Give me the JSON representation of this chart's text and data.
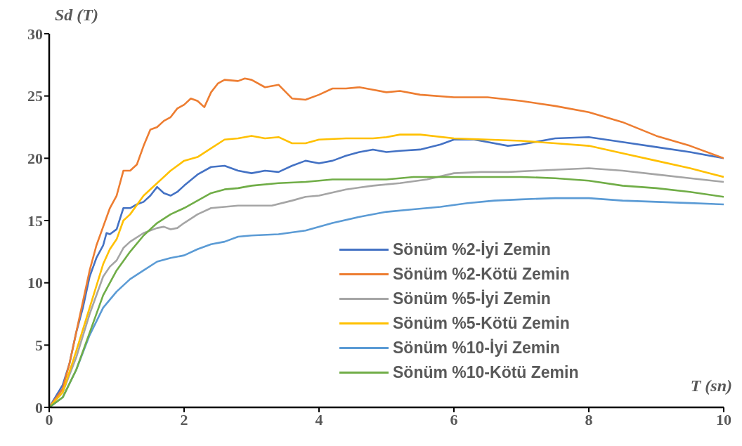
{
  "chart_data": {
    "type": "line",
    "xlabel": "T (sn)",
    "ylabel": "Sd (T)",
    "xlim": [
      0,
      10
    ],
    "xticks": [
      0,
      2,
      4,
      6,
      8,
      10
    ],
    "ylim": [
      0,
      30
    ],
    "yticks": [
      0,
      5,
      10,
      15,
      20,
      25,
      30
    ],
    "grid": false,
    "legend": "bottom right",
    "marker": "none",
    "line_style": "solid",
    "series": [
      {
        "name": "Sönüm %2-İyi Zemin",
        "color": "#4472c4",
        "x": [
          0,
          0.2,
          0.3,
          0.4,
          0.5,
          0.6,
          0.7,
          0.8,
          0.85,
          0.9,
          1.0,
          1.1,
          1.2,
          1.3,
          1.4,
          1.5,
          1.6,
          1.7,
          1.8,
          1.9,
          2.0,
          2.2,
          2.4,
          2.6,
          2.8,
          3.0,
          3.2,
          3.4,
          3.6,
          3.8,
          4.0,
          4.2,
          4.4,
          4.6,
          4.8,
          5.0,
          5.2,
          5.5,
          5.8,
          6.0,
          6.3,
          6.5,
          6.8,
          7.0,
          7.5,
          8.0,
          8.5,
          9.0,
          9.5,
          10
        ],
        "values": [
          0,
          1.8,
          3.5,
          6,
          8,
          10.5,
          12,
          13,
          14,
          13.9,
          14.3,
          16,
          16,
          16.3,
          16.5,
          17,
          17.7,
          17.2,
          17,
          17.3,
          17.8,
          18.7,
          19.3,
          19.4,
          19,
          18.8,
          19,
          18.9,
          19.4,
          19.8,
          19.6,
          19.8,
          20.2,
          20.5,
          20.7,
          20.5,
          20.6,
          20.7,
          21.1,
          21.5,
          21.5,
          21.3,
          21,
          21.1,
          21.6,
          21.7,
          21.3,
          20.9,
          20.5,
          20
        ]
      },
      {
        "name": "Sönüm %2-Kötü Zemin",
        "color": "#ed7d31",
        "x": [
          0,
          0.2,
          0.3,
          0.4,
          0.5,
          0.6,
          0.7,
          0.8,
          0.9,
          1.0,
          1.1,
          1.2,
          1.3,
          1.4,
          1.5,
          1.6,
          1.7,
          1.8,
          1.9,
          2.0,
          2.1,
          2.2,
          2.3,
          2.4,
          2.5,
          2.6,
          2.8,
          2.9,
          3.0,
          3.2,
          3.4,
          3.6,
          3.8,
          4.0,
          4.2,
          4.4,
          4.6,
          4.8,
          5.0,
          5.2,
          5.5,
          6.0,
          6.5,
          7.0,
          7.5,
          8.0,
          8.5,
          9.0,
          9.5,
          10
        ],
        "values": [
          0,
          1.5,
          3.5,
          6,
          8.5,
          11,
          13,
          14.5,
          16,
          17,
          19,
          19,
          19.5,
          21,
          22.3,
          22.5,
          23,
          23.3,
          24,
          24.3,
          24.8,
          24.6,
          24.1,
          25.3,
          26,
          26.3,
          26.2,
          26.4,
          26.3,
          25.7,
          25.9,
          24.8,
          24.7,
          25.1,
          25.6,
          25.6,
          25.7,
          25.5,
          25.3,
          25.4,
          25.1,
          24.9,
          24.9,
          24.6,
          24.2,
          23.7,
          22.9,
          21.8,
          21,
          20
        ]
      },
      {
        "name": "Sönüm %5-İyi Zemin",
        "color": "#a5a5a5",
        "x": [
          0,
          0.2,
          0.4,
          0.6,
          0.8,
          0.9,
          1.0,
          1.1,
          1.2,
          1.4,
          1.6,
          1.7,
          1.8,
          1.9,
          2.0,
          2.2,
          2.4,
          2.6,
          2.8,
          3.0,
          3.3,
          3.6,
          3.8,
          4.0,
          4.4,
          4.8,
          5.2,
          5.6,
          6.0,
          6.4,
          6.8,
          7.2,
          7.6,
          8.0,
          8.5,
          9.0,
          9.5,
          10
        ],
        "values": [
          0,
          1.2,
          4,
          7.5,
          10.5,
          11.3,
          11.8,
          12.8,
          13.3,
          14,
          14.4,
          14.5,
          14.3,
          14.4,
          14.8,
          15.5,
          16,
          16.1,
          16.2,
          16.2,
          16.2,
          16.6,
          16.9,
          17,
          17.5,
          17.8,
          18,
          18.3,
          18.8,
          18.9,
          18.9,
          19,
          19.1,
          19.2,
          19,
          18.7,
          18.4,
          18.1
        ]
      },
      {
        "name": "Sönüm %5-Kötü Zemin",
        "color": "#ffc000",
        "x": [
          0,
          0.2,
          0.4,
          0.6,
          0.8,
          0.9,
          1.0,
          1.1,
          1.2,
          1.4,
          1.6,
          1.8,
          2.0,
          2.2,
          2.4,
          2.6,
          2.8,
          3.0,
          3.2,
          3.4,
          3.6,
          3.8,
          4.0,
          4.4,
          4.8,
          5.0,
          5.2,
          5.5,
          6.0,
          6.5,
          7.0,
          7.5,
          8.0,
          8.5,
          9.0,
          9.5,
          10
        ],
        "values": [
          0,
          1.2,
          4.5,
          8,
          11.5,
          12.7,
          13.5,
          15,
          15.5,
          17,
          18,
          19,
          19.8,
          20.1,
          20.8,
          21.5,
          21.6,
          21.8,
          21.6,
          21.7,
          21.2,
          21.2,
          21.5,
          21.6,
          21.6,
          21.7,
          21.9,
          21.9,
          21.6,
          21.5,
          21.4,
          21.2,
          21,
          20.4,
          19.8,
          19.2,
          18.5
        ]
      },
      {
        "name": "Sönüm %10-İyi Zemin",
        "color": "#5b9bd5",
        "x": [
          0,
          0.2,
          0.4,
          0.6,
          0.8,
          1.0,
          1.2,
          1.4,
          1.6,
          1.8,
          2.0,
          2.2,
          2.4,
          2.6,
          2.8,
          3.0,
          3.4,
          3.8,
          4.2,
          4.6,
          5.0,
          5.4,
          5.8,
          6.2,
          6.6,
          7.0,
          7.5,
          8.0,
          8.5,
          9.0,
          9.5,
          10
        ],
        "values": [
          0,
          0.8,
          3,
          5.8,
          8,
          9.3,
          10.3,
          11,
          11.7,
          12,
          12.2,
          12.7,
          13.1,
          13.3,
          13.7,
          13.8,
          13.9,
          14.2,
          14.8,
          15.3,
          15.7,
          15.9,
          16.1,
          16.4,
          16.6,
          16.7,
          16.8,
          16.8,
          16.6,
          16.5,
          16.4,
          16.3
        ]
      },
      {
        "name": "Sönüm %10-Kötü Zemin",
        "color": "#70ad47",
        "x": [
          0,
          0.2,
          0.4,
          0.6,
          0.8,
          1.0,
          1.2,
          1.4,
          1.6,
          1.8,
          2.0,
          2.2,
          2.4,
          2.6,
          2.8,
          3.0,
          3.4,
          3.8,
          4.2,
          4.6,
          5.0,
          5.4,
          6.0,
          6.5,
          7.0,
          7.5,
          8.0,
          8.5,
          9.0,
          9.5,
          10
        ],
        "values": [
          0,
          0.8,
          3,
          6,
          9,
          11,
          12.5,
          13.8,
          14.8,
          15.5,
          16,
          16.6,
          17.2,
          17.5,
          17.6,
          17.8,
          18,
          18.1,
          18.3,
          18.3,
          18.3,
          18.5,
          18.5,
          18.5,
          18.5,
          18.4,
          18.2,
          17.8,
          17.6,
          17.3,
          16.9
        ]
      }
    ]
  }
}
